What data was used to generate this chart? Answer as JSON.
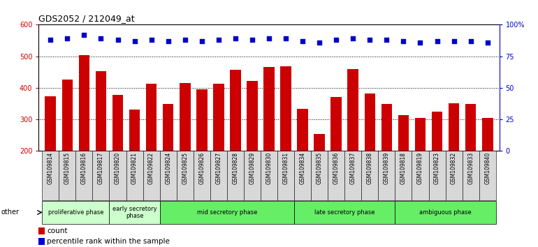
{
  "title": "GDS2052 / 212049_at",
  "categories": [
    "GSM109814",
    "GSM109815",
    "GSM109816",
    "GSM109817",
    "GSM109820",
    "GSM109821",
    "GSM109822",
    "GSM109824",
    "GSM109825",
    "GSM109826",
    "GSM109827",
    "GSM109828",
    "GSM109829",
    "GSM109830",
    "GSM109831",
    "GSM109834",
    "GSM109835",
    "GSM109836",
    "GSM109837",
    "GSM109838",
    "GSM109839",
    "GSM109818",
    "GSM109819",
    "GSM109823",
    "GSM109832",
    "GSM109833",
    "GSM109840"
  ],
  "counts": [
    372,
    425,
    503,
    452,
    378,
    331,
    413,
    348,
    415,
    395,
    413,
    456,
    421,
    466,
    467,
    332,
    254,
    370,
    459,
    381,
    348,
    313,
    305,
    325,
    350,
    348,
    305
  ],
  "percentile_ranks": [
    88,
    89,
    92,
    89,
    88,
    87,
    88,
    87,
    88,
    87,
    88,
    89,
    88,
    89,
    89,
    87,
    86,
    88,
    89,
    88,
    88,
    87,
    86,
    87,
    87,
    87,
    86
  ],
  "bar_color": "#cc0000",
  "dot_color": "#0000cc",
  "ylim_left": [
    200,
    600
  ],
  "ylim_right": [
    0,
    100
  ],
  "yticks_left": [
    200,
    300,
    400,
    500,
    600
  ],
  "yticks_right": [
    0,
    25,
    50,
    75,
    100
  ],
  "ytick_labels_right": [
    "0",
    "25",
    "50",
    "75",
    "100%"
  ],
  "phases": [
    {
      "label": "proliferative phase",
      "start": 0,
      "end": 4,
      "color": "#ccffcc"
    },
    {
      "label": "early secretory\nphase",
      "start": 4,
      "end": 7,
      "color": "#ccffcc"
    },
    {
      "label": "mid secretory phase",
      "start": 7,
      "end": 15,
      "color": "#66ee66"
    },
    {
      "label": "late secretory phase",
      "start": 15,
      "end": 21,
      "color": "#66ee66"
    },
    {
      "label": "ambiguous phase",
      "start": 21,
      "end": 27,
      "color": "#66ee66"
    }
  ],
  "other_label": "other",
  "legend_count_label": "count",
  "legend_percentile_label": "percentile rank within the sample",
  "plot_bg_color": "#ffffff",
  "xtick_bg_color": "#d8d8d8",
  "axis_color": "#cc0000",
  "right_axis_color": "#0000cc",
  "grid_color": "#000000",
  "fig_width": 7.7,
  "fig_height": 3.54,
  "dpi": 100
}
